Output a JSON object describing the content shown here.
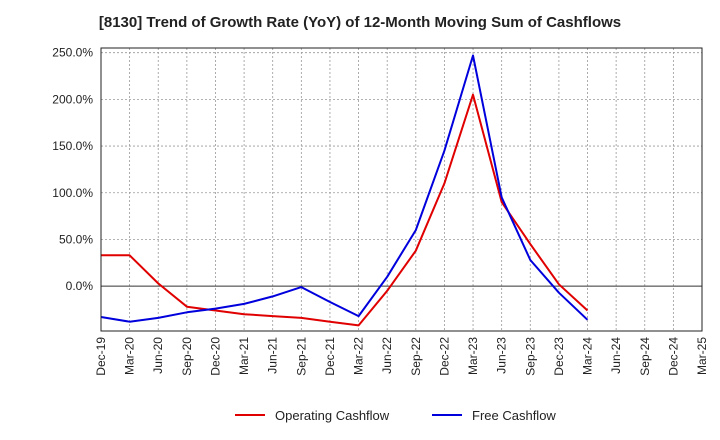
{
  "chart_data": {
    "type": "line",
    "title": "[8130]  Trend of Growth Rate (YoY) of 12-Month Moving Sum of Cashflows",
    "xlabel": "",
    "ylabel": "",
    "ylim": [
      -48,
      255
    ],
    "yticks": [
      "250.0%",
      "200.0%",
      "150.0%",
      "100.0%",
      "50.0%",
      "0.0%"
    ],
    "ytick_values": [
      250,
      200,
      150,
      100,
      50,
      0
    ],
    "categories": [
      "Dec-19",
      "Mar-20",
      "Jun-20",
      "Sep-20",
      "Dec-20",
      "Mar-21",
      "Jun-21",
      "Sep-21",
      "Dec-21",
      "Mar-22",
      "Jun-22",
      "Sep-22",
      "Dec-22",
      "Mar-23",
      "Jun-23",
      "Sep-23",
      "Dec-23",
      "Mar-24",
      "Jun-24",
      "Sep-24",
      "Dec-24",
      "Mar-25"
    ],
    "grid": true,
    "legend_position": "bottom",
    "series": [
      {
        "name": "Operating Cashflow",
        "color": "#e00000",
        "values": [
          33,
          33,
          3,
          -22,
          -26,
          -30,
          -32,
          -34,
          -38,
          -42,
          -5,
          38,
          110,
          205,
          90,
          45,
          2,
          -26,
          null,
          null,
          null,
          null
        ]
      },
      {
        "name": "Free Cashflow",
        "color": "#0000dd",
        "values": [
          -33,
          -38,
          -34,
          -28,
          -24,
          -19,
          -11,
          -1,
          -17,
          -32,
          10,
          60,
          145,
          247,
          95,
          28,
          -7,
          -36,
          null,
          null,
          null,
          null
        ]
      }
    ]
  }
}
